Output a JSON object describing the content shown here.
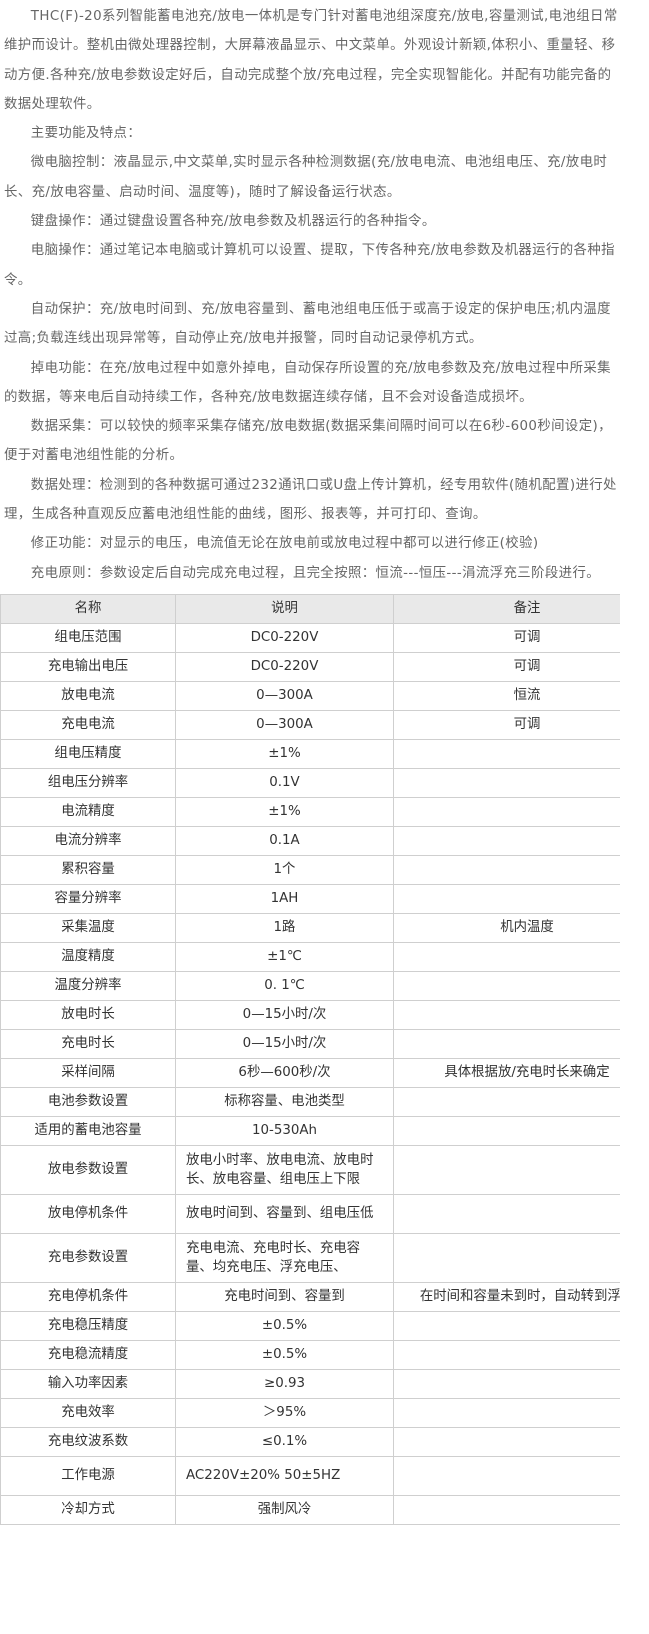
{
  "paragraphs": [
    "THC(F)-20系列智能蓄电池充/放电一体机是专门针对蓄电池组深度充/放电,容量测试,电池组日常维护而设计。整机由微处理器控制，大屏幕液晶显示、中文菜单。外观设计新颖,体积小、重量轻、移动方便.各种充/放电参数设定好后，自动完成整个放/充电过程，完全实现智能化。并配有功能完备的数据处理软件。",
    "主要功能及特点：",
    "微电脑控制：液晶显示,中文菜单,实时显示各种检测数据(充/放电电流、电池组电压、充/放电时长、充/放电容量、启动时间、温度等)，随时了解设备运行状态。",
    "键盘操作：通过键盘设置各种充/放电参数及机器运行的各种指令。",
    "电脑操作：通过笔记本电脑或计算机可以设置、提取，下传各种充/放电参数及机器运行的各种指令。",
    "自动保护：充/放电时间到、充/放电容量到、蓄电池组电压低于或高于设定的保护电压;机内温度过高;负载连线出现异常等，自动停止充/放电并报警，同时自动记录停机方式。",
    "掉电功能：在充/放电过程中如意外掉电，自动保存所设置的充/放电参数及充/放电过程中所采集的数据，等来电后自动持续工作，各种充/放电数据连续存储，且不会对设备造成损坏。",
    "数据采集：可以较快的频率采集存储充/放电数据(数据采集间隔时间可以在6秒-600秒间设定)，便于对蓄电池组性能的分析。",
    "数据处理：检测到的各种数据可通过232通讯口或U盘上传计算机，经专用软件(随机配置)进行处理，生成各种直观反应蓄电池组性能的曲线，图形、报表等，并可打印、查询。",
    "修正功能：对显示的电压，电流值无论在放电前或放电过程中都可以进行修正(校验)",
    "充电原则：参数设定后自动完成充电过程，且完全按照：恒流---恒压---涓流浮充三阶段进行。"
  ],
  "table": {
    "header": [
      "名称",
      "说明",
      "备注"
    ],
    "rows": [
      [
        "组电压范围",
        "DC0-220V",
        "可调"
      ],
      [
        "充电输出电压",
        "DC0-220V",
        "可调"
      ],
      [
        "放电电流",
        "0—300A",
        "恒流"
      ],
      [
        "充电电流",
        "0—300A",
        "可调"
      ],
      [
        "组电压精度",
        "±1%",
        null
      ],
      [
        "组电压分辨率",
        "0.1V",
        null
      ],
      [
        "电流精度",
        "±1%",
        null
      ],
      [
        "电流分辨率",
        "0.1A",
        null
      ],
      [
        "累积容量",
        "1个",
        null
      ],
      [
        "容量分辨率",
        "1AH",
        null
      ],
      [
        "采集温度",
        "1路",
        "机内温度"
      ],
      [
        "温度精度",
        "±1℃",
        null
      ],
      [
        "温度分辨率",
        "0. 1℃",
        null
      ],
      [
        "放电时长",
        "0—15小时/次",
        null
      ],
      [
        "充电时长",
        "0—15小时/次",
        null
      ],
      [
        "采样间隔",
        "6秒—600秒/次",
        "具体根据放/充电时长来确定"
      ],
      [
        "电池参数设置",
        "标称容量、电池类型",
        null
      ],
      [
        "适用的蓄电池容量",
        "10-530Ah",
        null
      ],
      [
        "放电参数设置",
        "放电小时率、放电电流、放电时长、放电容量、组电压上下限",
        null
      ],
      [
        "放电停机条件",
        "放电时间到、容量到、组电压低",
        null
      ],
      [
        "充电参数设置",
        "充电电流、充电时长、充电容量、均充电压、浮充电压、",
        null
      ],
      [
        "充电停机条件",
        "充电时间到、容量到",
        "在时间和容量未到时，自动转到浮充"
      ],
      [
        "充电稳压精度",
        "±0.5%",
        null
      ],
      [
        "充电稳流精度",
        "±0.5%",
        null
      ],
      [
        "输入功率因素",
        "≥0.93",
        null
      ],
      [
        "充电效率",
        "＞95%",
        null
      ],
      [
        "充电纹波系数",
        "≤0.1%",
        null
      ],
      [
        "工作电源",
        "AC220V±20%  50±5HZ",
        null
      ],
      [
        "冷却方式",
        "强制风冷",
        null
      ]
    ]
  }
}
